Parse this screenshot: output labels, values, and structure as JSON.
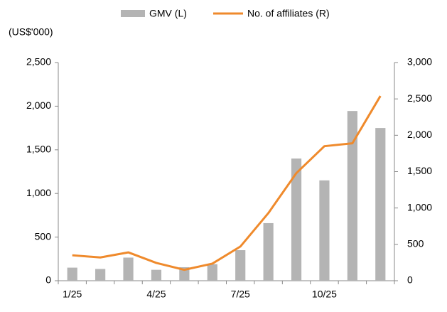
{
  "chart_data": {
    "type": "bar-line",
    "y_axis_label": "(US$'000)",
    "categories": [
      "1/25",
      null,
      null,
      "4/25",
      null,
      null,
      "7/25",
      null,
      null,
      "10/25",
      null,
      null
    ],
    "series": [
      {
        "name": "GMV (L)",
        "color": "#b4b4b4",
        "type": "bar",
        "axis": "y",
        "values": [
          150,
          135,
          265,
          125,
          155,
          190,
          350,
          660,
          1400,
          1150,
          1945,
          1750
        ]
      },
      {
        "name": "No. of affiliates (R)",
        "color": "#ef8a2c",
        "type": "line",
        "axis": "y2",
        "values": [
          350,
          320,
          390,
          245,
          150,
          235,
          470,
          930,
          1480,
          1850,
          1890,
          2540
        ]
      }
    ],
    "ylim": [
      0,
      2500
    ],
    "yticks": [
      0,
      500,
      {
        "value": 1000,
        "label": "1,000"
      },
      {
        "value": 1500,
        "label": "1,500"
      },
      {
        "value": 2000,
        "label": "2,000"
      },
      {
        "value": 2500,
        "label": "2,500"
      }
    ],
    "y2lim": [
      0,
      3000
    ],
    "y2ticks": [
      0,
      500,
      {
        "value": 1000,
        "label": "1,000"
      },
      {
        "value": 1500,
        "label": "1,500"
      },
      {
        "value": 2000,
        "label": "2,000"
      },
      {
        "value": 2500,
        "label": "2,500"
      },
      {
        "value": 3000,
        "label": "3,000"
      }
    ],
    "legend": "top"
  }
}
